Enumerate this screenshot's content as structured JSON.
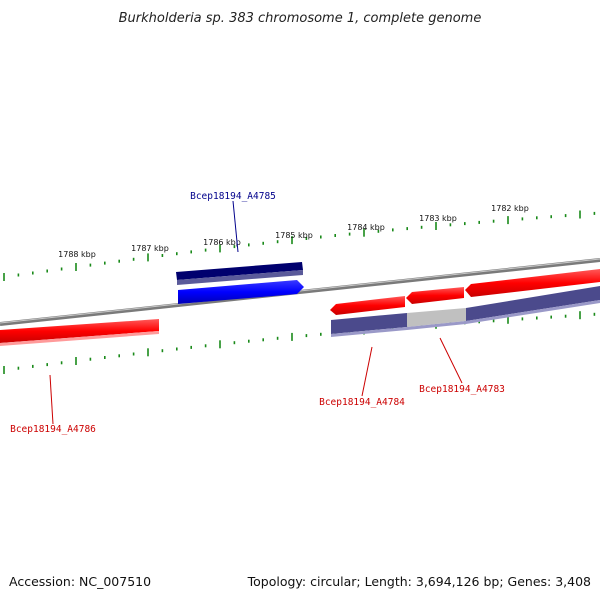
{
  "title": "Burkholderia sp. 383 chromosome 1, complete genome",
  "footer": {
    "accession": "Accession: NC_007510",
    "topology": "Topology: circular; Length: 3,694,126 bp; Genes: 3,408"
  },
  "scale_labels": [
    "1788 kbp",
    "1787 kbp",
    "1786 kbp",
    "1785 kbp",
    "1784 kbp",
    "1783 kbp",
    "1782 kbp"
  ],
  "gene_labels": {
    "A4785": "Bcep18194_A4785",
    "A4786": "Bcep18194_A4786",
    "A4784": "Bcep18194_A4784",
    "A4783": "Bcep18194_A4783"
  },
  "colors": {
    "forward_gene": "#ff0000",
    "reverse_gene": "#0000ff",
    "label_red": "#cc0000",
    "label_blue": "#00008b",
    "backbone": "#808080",
    "ticks": "#1a8a1a",
    "track_purple": "#4b4a8c",
    "track_gray": "#c0c0c0"
  }
}
